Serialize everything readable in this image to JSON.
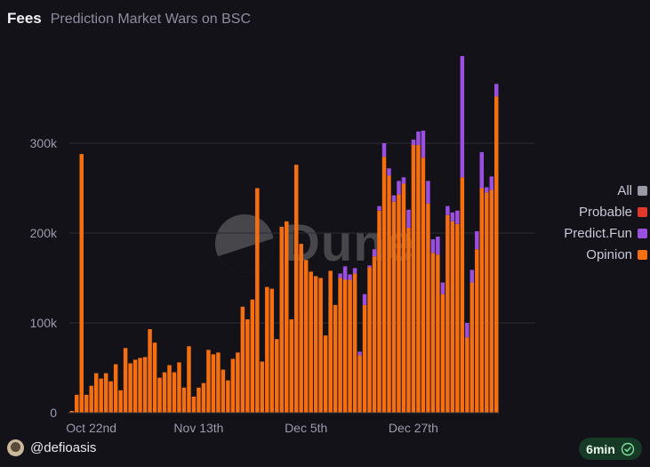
{
  "header": {
    "title": "Fees",
    "subtitle": "Prediction Market Wars on BSC"
  },
  "legend": [
    {
      "label": "All",
      "color": "#9a9aa6"
    },
    {
      "label": "Probable",
      "color": "#e0392b"
    },
    {
      "label": "Predict.Fun",
      "color": "#9b4fe0"
    },
    {
      "label": "Opinion",
      "color": "#f56e0f"
    }
  ],
  "watermark": {
    "text": "Dune"
  },
  "footer": {
    "username": "@defioasis",
    "refresh_badge": "6min"
  },
  "chart_data": {
    "type": "bar",
    "stacked": true,
    "ylim": [
      0,
      400000
    ],
    "yticks": [
      {
        "value": 0,
        "label": "0"
      },
      {
        "value": 100000,
        "label": "100k"
      },
      {
        "value": 200000,
        "label": "200k"
      },
      {
        "value": 300000,
        "label": "300k"
      }
    ],
    "xticks": [
      {
        "index": 4,
        "label": "Oct 22nd"
      },
      {
        "index": 26,
        "label": "Nov 13th"
      },
      {
        "index": 48,
        "label": "Dec 5th"
      },
      {
        "index": 70,
        "label": "Dec 27th"
      }
    ],
    "grid": true,
    "legend_position": "right",
    "series": [
      {
        "name": "Opinion",
        "color": "#f56e0f",
        "values": [
          2000,
          20000,
          288000,
          20000,
          30000,
          44000,
          38000,
          44000,
          35000,
          54000,
          25000,
          72000,
          55000,
          59000,
          61000,
          62000,
          93000,
          78000,
          39000,
          45000,
          53000,
          45000,
          56000,
          28000,
          74000,
          18000,
          28000,
          33000,
          70000,
          65000,
          67000,
          48000,
          36000,
          60000,
          67000,
          118000,
          104000,
          126000,
          250000,
          57000,
          140000,
          138000,
          82000,
          207000,
          213000,
          104000,
          276000,
          188000,
          170000,
          157000,
          152000,
          150000,
          86000,
          158000,
          120000,
          150000,
          148000,
          148000,
          155000,
          64000,
          120000,
          162000,
          174000,
          225000,
          285000,
          264000,
          235000,
          243000,
          255000,
          206000,
          298000,
          298000,
          284000,
          233000,
          178000,
          176000,
          132000,
          220000,
          213000,
          210000,
          262000,
          84000,
          145000,
          182000,
          250000,
          245000,
          248000,
          352000
        ]
      },
      {
        "name": "Predict.Fun",
        "color": "#9b4fe0",
        "values": [
          0,
          0,
          0,
          0,
          0,
          0,
          0,
          0,
          0,
          0,
          0,
          0,
          0,
          0,
          0,
          0,
          0,
          0,
          0,
          0,
          0,
          0,
          0,
          0,
          0,
          0,
          0,
          0,
          0,
          0,
          0,
          0,
          0,
          0,
          0,
          0,
          0,
          0,
          0,
          0,
          0,
          0,
          0,
          0,
          0,
          0,
          0,
          0,
          0,
          0,
          0,
          0,
          0,
          0,
          0,
          5000,
          15000,
          6000,
          6000,
          4000,
          12000,
          2000,
          8000,
          5000,
          15000,
          8000,
          7000,
          15000,
          7000,
          20000,
          6000,
          15000,
          30000,
          25000,
          15000,
          20000,
          13000,
          10000,
          10000,
          15000,
          135000,
          16000,
          14000,
          20000,
          40000,
          6000,
          15000,
          14000
        ]
      },
      {
        "name": "Probable",
        "color": "#e0392b",
        "values": [
          0,
          0,
          0,
          0,
          0,
          0,
          0,
          0,
          0,
          0,
          0,
          0,
          0,
          0,
          0,
          0,
          0,
          0,
          0,
          0,
          0,
          0,
          0,
          0,
          0,
          0,
          0,
          0,
          0,
          0,
          0,
          0,
          0,
          0,
          0,
          0,
          0,
          0,
          0,
          0,
          0,
          0,
          0,
          0,
          0,
          0,
          0,
          0,
          0,
          0,
          0,
          0,
          0,
          0,
          0,
          0,
          0,
          0,
          0,
          0,
          0,
          0,
          0,
          0,
          0,
          0,
          0,
          0,
          0,
          0,
          0,
          0,
          0,
          0,
          0,
          0,
          0,
          0,
          0,
          0,
          0,
          0,
          0,
          0,
          0,
          0,
          0,
          0
        ]
      }
    ]
  }
}
